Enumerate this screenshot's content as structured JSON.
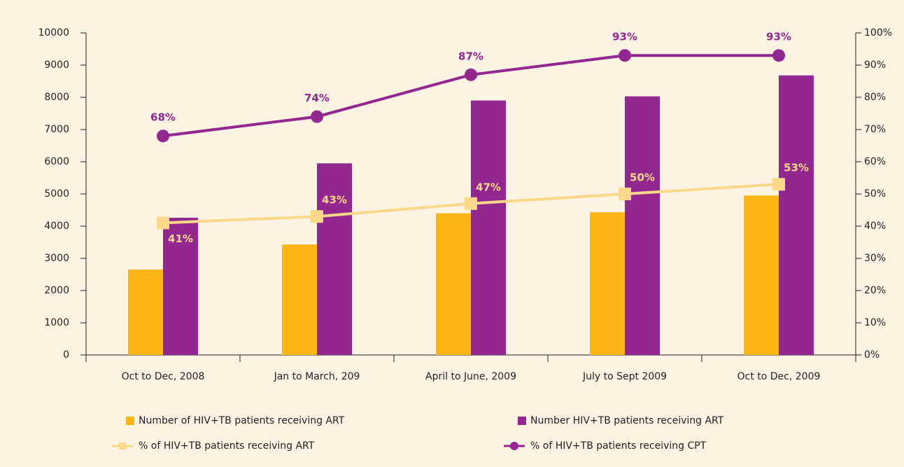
{
  "chart_data": {
    "type": "combo",
    "categories": [
      "Oct to Dec, 2008",
      "Jan to March, 209",
      "April to June, 2009",
      "July to Sept 2009",
      "Oct to Dec, 2009"
    ],
    "series": [
      {
        "name": "Number of HIV+TB patients receiving ART",
        "type": "bar",
        "color": "#fbb515",
        "values": [
          2650,
          3430,
          4400,
          4430,
          4950
        ]
      },
      {
        "name": "Number HIV+TB patients receiving ART",
        "type": "bar",
        "color": "#92278f",
        "values": [
          4260,
          5950,
          7900,
          8030,
          8680
        ]
      },
      {
        "name": "% of HIV+TB patients receiving ART",
        "type": "line",
        "marker": "square",
        "axis": "y2",
        "color": "#fcd98a",
        "values": [
          41,
          43,
          47,
          50,
          53
        ],
        "value_labels": [
          "41%",
          "43%",
          "47%",
          "50%",
          "53%"
        ]
      },
      {
        "name": "% of HIV+TB patients receiving CPT",
        "type": "line",
        "marker": "circle",
        "axis": "y2",
        "color": "#92278f",
        "values": [
          68,
          74,
          87,
          93,
          93
        ],
        "value_labels": [
          "68%",
          "74%",
          "87%",
          "93%",
          "93%"
        ]
      }
    ],
    "ylim": [
      0,
      10000
    ],
    "yticks": [
      0,
      1000,
      2000,
      3000,
      4000,
      5000,
      6000,
      7000,
      8000,
      9000,
      10000
    ],
    "y2lim": [
      0,
      100
    ],
    "y2ticks": [
      {
        "value": 0,
        "label": "0%"
      },
      {
        "value": 10,
        "label": "10%"
      },
      {
        "value": 20,
        "label": "20%"
      },
      {
        "value": 30,
        "label": "30%"
      },
      {
        "value": 40,
        "label": "40%"
      },
      {
        "value": 50,
        "label": "50%"
      },
      {
        "value": 60,
        "label": "60%"
      },
      {
        "value": 70,
        "label": "70%"
      },
      {
        "value": 80,
        "label": "80%"
      },
      {
        "value": 90,
        "label": "90%"
      },
      {
        "value": 100,
        "label": "100%"
      }
    ],
    "grid": false
  }
}
